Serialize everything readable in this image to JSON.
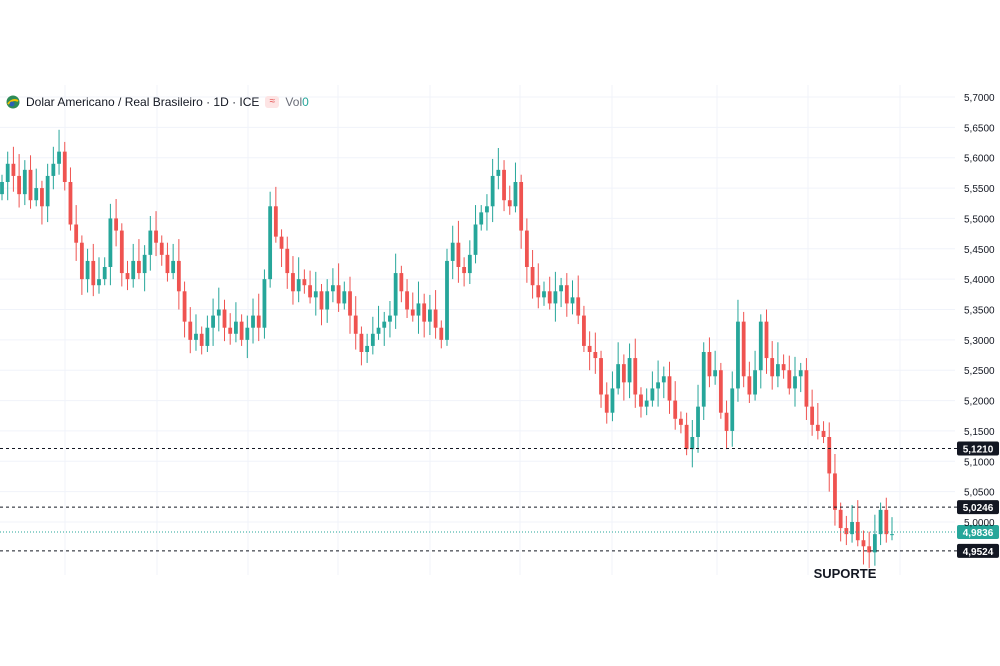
{
  "legend": {
    "symbol_title": "Dolar Americano / Real Brasileiro · 1D · ICE",
    "volume_label": "Vol",
    "volume_value": "0"
  },
  "icons": {
    "symbol": "flag-icon",
    "wave": "wave-icon"
  },
  "colors": {
    "up": "#26a69a",
    "down": "#ef5350",
    "level_line": "#131722",
    "current_price": "#26a69a",
    "price_tag_dark": "#131722",
    "grid": "#f0f3fa",
    "axis_text": "#131722"
  },
  "chart_data": {
    "type": "candlestick",
    "title": "Dolar Americano / Real Brasileiro · 1D · ICE",
    "xlabel": "",
    "ylabel": "",
    "ylim": [
      4.93,
      5.71
    ],
    "yticks": [
      "5,7000",
      "5,6500",
      "5,6000",
      "5,5500",
      "5,5000",
      "5,4500",
      "5,4000",
      "5,3500",
      "5,3000",
      "5,2500",
      "5,2000",
      "5,1500",
      "5,1000",
      "5,0500",
      "5,0000"
    ],
    "grid": true,
    "price_axis": "right",
    "levels": [
      {
        "value": 5.121,
        "label": "5,1210",
        "style": "dashed"
      },
      {
        "value": 5.0246,
        "label": "5,0246",
        "style": "dashed"
      },
      {
        "value": 4.9524,
        "label": "4,9524",
        "style": "dashed"
      }
    ],
    "current_price": {
      "value": 4.9836,
      "label": "4,9836"
    },
    "annotation": {
      "text": "SUPORTE",
      "value": 4.9524
    },
    "closes": [
      5.56,
      5.59,
      5.57,
      5.54,
      5.58,
      5.53,
      5.55,
      5.52,
      5.57,
      5.59,
      5.61,
      5.56,
      5.49,
      5.46,
      5.4,
      5.43,
      5.39,
      5.4,
      5.42,
      5.5,
      5.48,
      5.41,
      5.4,
      5.43,
      5.41,
      5.44,
      5.48,
      5.46,
      5.44,
      5.41,
      5.43,
      5.38,
      5.33,
      5.3,
      5.31,
      5.29,
      5.32,
      5.34,
      5.35,
      5.32,
      5.31,
      5.33,
      5.3,
      5.32,
      5.34,
      5.32,
      5.4,
      5.52,
      5.47,
      5.45,
      5.41,
      5.38,
      5.4,
      5.39,
      5.37,
      5.38,
      5.35,
      5.38,
      5.39,
      5.36,
      5.38,
      5.34,
      5.31,
      5.28,
      5.29,
      5.31,
      5.32,
      5.33,
      5.34,
      5.41,
      5.38,
      5.35,
      5.34,
      5.36,
      5.33,
      5.35,
      5.32,
      5.3,
      5.43,
      5.46,
      5.42,
      5.41,
      5.44,
      5.49,
      5.51,
      5.52,
      5.57,
      5.58,
      5.53,
      5.52,
      5.56,
      5.48,
      5.42,
      5.39,
      5.37,
      5.38,
      5.36,
      5.38,
      5.39,
      5.36,
      5.37,
      5.34,
      5.29,
      5.28,
      5.27,
      5.21,
      5.18,
      5.22,
      5.26,
      5.23,
      5.27,
      5.21,
      5.19,
      5.2,
      5.22,
      5.23,
      5.24,
      5.2,
      5.17,
      5.16,
      5.12,
      5.14,
      5.19,
      5.28,
      5.24,
      5.25,
      5.18,
      5.15,
      5.22,
      5.33,
      5.24,
      5.21,
      5.25,
      5.33,
      5.27,
      5.24,
      5.26,
      5.25,
      5.22,
      5.24,
      5.25,
      5.19,
      5.16,
      5.15,
      5.14,
      5.08,
      5.02,
      4.99,
      4.98,
      5.0,
      4.97,
      4.96,
      4.95,
      4.98,
      5.02,
      4.98,
      4.98
    ]
  }
}
